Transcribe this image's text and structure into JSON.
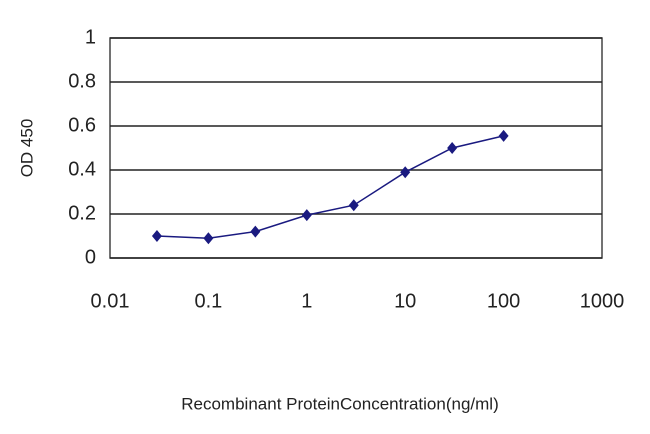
{
  "chart_data": {
    "type": "line",
    "x_label": "Recombinant ProteinConcentration(ng/ml)",
    "y_label": "OD 450",
    "x": [
      0.03,
      0.1,
      0.3,
      1,
      3,
      10,
      30,
      100
    ],
    "series": [
      {
        "color": "#1a1a80",
        "values": [
          0.1,
          0.09,
          0.12,
          0.195,
          0.24,
          0.39,
          0.5,
          0.555
        ]
      }
    ],
    "xscale": "log",
    "xlim": [
      0.01,
      1000
    ],
    "xticks": [
      0.01,
      0.1,
      1,
      10,
      100,
      1000
    ],
    "ylim": [
      0,
      1
    ],
    "yticks": [
      0,
      0.2,
      0.4,
      0.6,
      0.8,
      1
    ],
    "grid": true
  }
}
